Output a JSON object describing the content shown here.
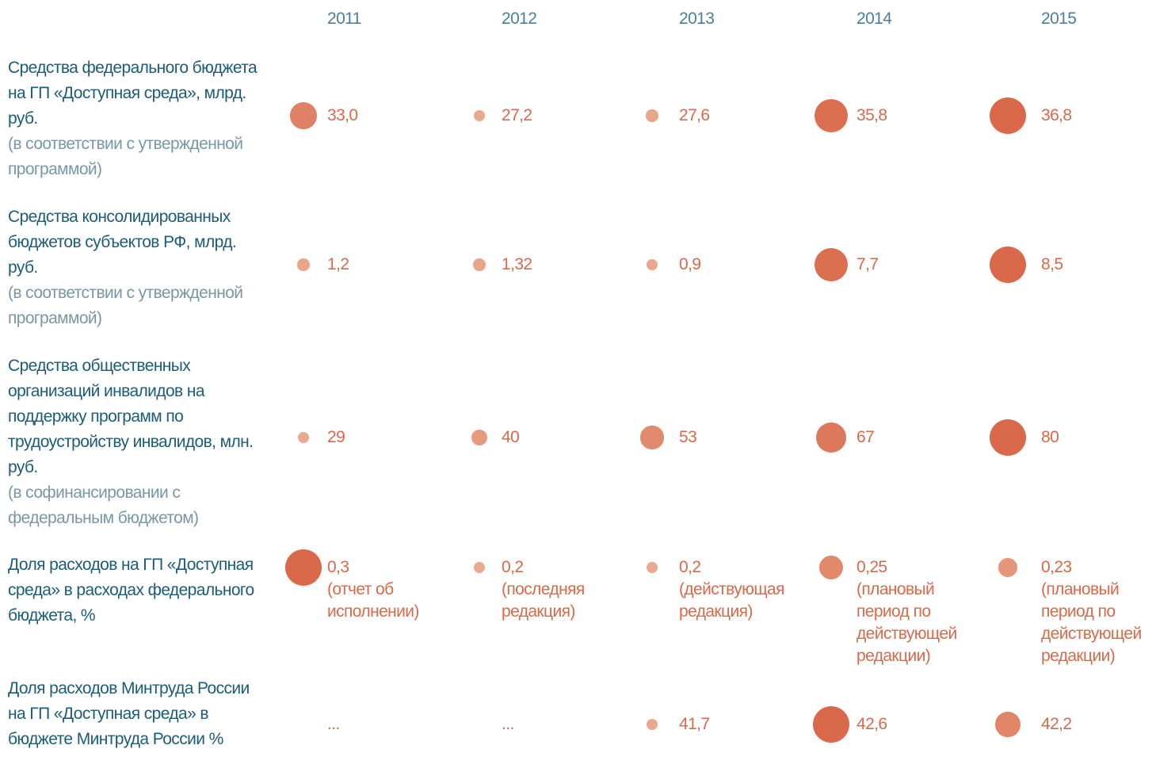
{
  "chart_data": {
    "type": "bubble_table",
    "columns": [
      "2011",
      "2012",
      "2013",
      "2014",
      "2015"
    ],
    "color": "#d9694a",
    "light_color": "#eaa88d",
    "rows": [
      {
        "name": "Средства федерального бюджета на ГП «Доступная среда», млрд. руб.",
        "note": "(в соответствии с утвержденной программой)",
        "values": [
          33.0,
          27.2,
          27.6,
          35.8,
          36.8
        ],
        "value_labels": [
          "33,0",
          "27,2",
          "27,6",
          "35,8",
          "36,8"
        ]
      },
      {
        "name": "Средства консолидированных бюджетов субъектов РФ, млрд. руб.",
        "note": "(в соответствии с утвержденной программой)",
        "values": [
          1.2,
          1.32,
          0.9,
          7.7,
          8.5
        ],
        "value_labels": [
          "1,2",
          "1,32",
          "0,9",
          "7,7",
          "8,5"
        ]
      },
      {
        "name": "Средства общественных организаций инвалидов на поддержку программ по трудоустройству инвалидов, млн. руб.",
        "note": "(в софинансировании с федеральным бюджетом)",
        "values": [
          29,
          40,
          53,
          67,
          80
        ]
      },
      {
        "name": "Доля расходов на ГП «Доступная среда» в расходах федерального бюджета, %",
        "values": [
          0.3,
          0.2,
          0.2,
          0.25,
          0.23
        ],
        "value_labels": [
          "0,3",
          "0,2",
          "0,2",
          "0,25",
          "0,23"
        ],
        "cell_notes": [
          "(отчет об исполнении)",
          "(последняя редакция)",
          "(действующая редакция)",
          "(плановый период по действующей редакции)",
          "(плановый период по действующей редакции)"
        ]
      },
      {
        "name": "Доля расходов Минтруда России на ГП «Доступная среда» в бюджете Минтруда России %",
        "values": [
          null,
          null,
          41.7,
          42.6,
          42.2
        ],
        "value_labels": [
          "...",
          "...",
          "41,7",
          "42,6",
          "42,2"
        ]
      }
    ]
  }
}
